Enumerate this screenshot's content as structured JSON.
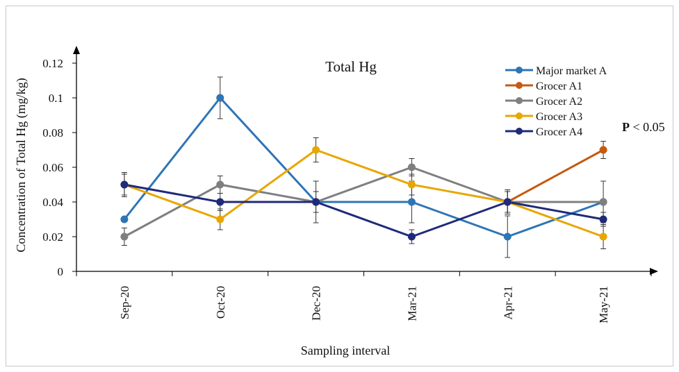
{
  "chart_data": {
    "type": "line",
    "title": "Total Hg",
    "xlabel": "Sampling interval",
    "ylabel": "Concentration of Total Hg (mg/kg)",
    "annotation": {
      "bold": "P",
      "rest": " < 0.05"
    },
    "categories": [
      "Sep-20",
      "Oct-20",
      "Dec-20",
      "Mar-21",
      "Apr-21",
      "May-21"
    ],
    "ylim": [
      0,
      0.12
    ],
    "yticks": [
      "0",
      "0.02",
      "0.04",
      "0.06",
      "0.08",
      "0.1",
      "0.12"
    ],
    "legend_position": "top-right",
    "grid": false,
    "series": [
      {
        "name": "Major market A",
        "color": "#2e75b6",
        "values": [
          0.03,
          0.1,
          0.04,
          0.04,
          0.02,
          0.04
        ],
        "errors": [
          0.0,
          0.012,
          0.0,
          0.012,
          0.012,
          0.0
        ]
      },
      {
        "name": "Grocer A1",
        "color": "#c55a11",
        "values": [
          null,
          null,
          null,
          null,
          0.04,
          0.07
        ],
        "errors": [
          0,
          0,
          0,
          0,
          0,
          0.005
        ]
      },
      {
        "name": "Grocer A2",
        "color": "#7f7f7f",
        "values": [
          0.02,
          0.05,
          0.04,
          0.06,
          0.04,
          0.04
        ],
        "errors": [
          0.005,
          0.005,
          0.012,
          0.005,
          0.006,
          0.012
        ]
      },
      {
        "name": "Grocer A3",
        "color": "#e8a600",
        "values": [
          0.05,
          0.03,
          0.07,
          0.05,
          0.04,
          0.02
        ],
        "errors": [
          0.006,
          0.006,
          0.007,
          0.006,
          0.007,
          0.007
        ]
      },
      {
        "name": "Grocer A4",
        "color": "#1f2a7a",
        "values": [
          0.05,
          0.04,
          0.04,
          0.02,
          0.04,
          0.03
        ],
        "errors": [
          0.007,
          0.005,
          0.006,
          0.004,
          0.006,
          0.004
        ]
      }
    ]
  }
}
